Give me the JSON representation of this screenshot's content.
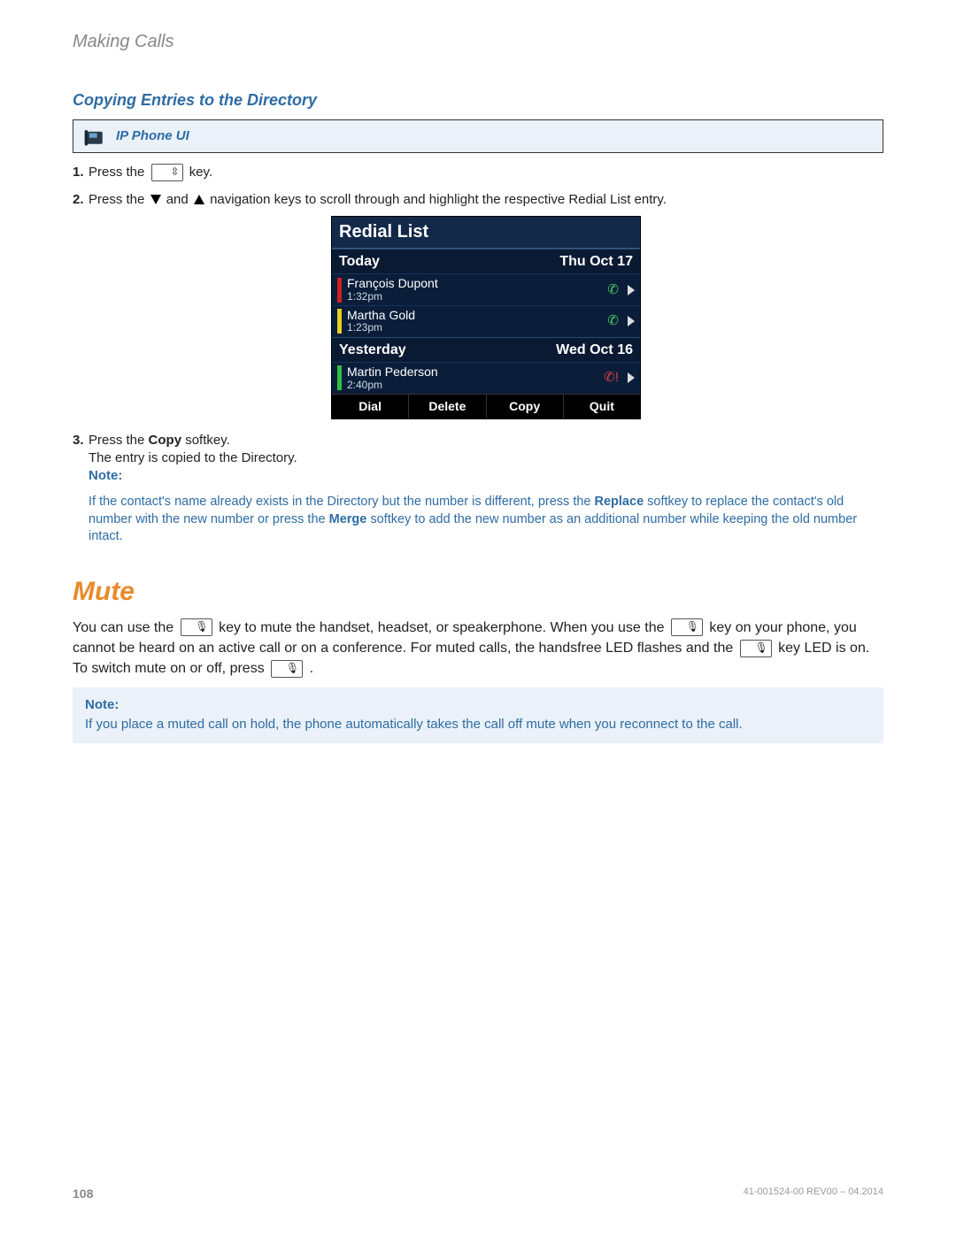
{
  "header": {
    "breadcrumb": "Making Calls"
  },
  "section1": {
    "title": "Copying Entries to the Directory",
    "banner": "IP Phone UI",
    "steps": {
      "s1_pre": "Press the",
      "s1_post": "key.",
      "s2_pre": "Press the",
      "s2_mid": "and",
      "s2_post": "navigation keys to scroll through and highlight the respective Redial List entry.",
      "s3_pre": "Press the ",
      "s3_bold": "Copy",
      "s3_post": " softkey.",
      "s3_line2": "The entry is copied to the Directory."
    },
    "note_label": "Note:",
    "note_text_parts": {
      "a": "If the contact's name already exists in the Directory but the number is different, press the ",
      "b": "Replace",
      "c": " softkey to replace the contact's old number with the new number or press the ",
      "d": "Merge",
      "e": " softkey to add the new number as an additional number while keeping the old number intact."
    }
  },
  "redial": {
    "title": "Redial List",
    "groups": [
      {
        "label": "Today",
        "date": "Thu Oct 17",
        "rows": [
          {
            "bar": "red",
            "name": "François Dupont",
            "time": "1:32pm",
            "icon": "out"
          },
          {
            "bar": "yellow",
            "name": "Martha Gold",
            "time": "1:23pm",
            "icon": "out"
          }
        ]
      },
      {
        "label": "Yesterday",
        "date": "Wed Oct 16",
        "rows": [
          {
            "bar": "green",
            "name": "Martin Pederson",
            "time": "2:40pm",
            "icon": "miss"
          }
        ]
      }
    ],
    "softkeys": [
      "Dial",
      "Delete",
      "Copy",
      "Quit"
    ]
  },
  "section2": {
    "title": "Mute",
    "para_parts": {
      "a": "You can use the ",
      "b": " key to mute the handset, headset, or speakerphone. When you use the ",
      "c": " key on your phone, you cannot be heard on an active call or on a conference. For muted calls, the handsfree LED flashes and the ",
      "d": " key LED is on.  To switch mute on or off, press ",
      "e": " ."
    },
    "note_label": "Note:",
    "note_text": "If you place a muted call on hold, the phone automatically takes the call off mute when you reconnect to the call."
  },
  "footer": {
    "page": "108",
    "doc": "41-001524-00 REV00 – 04.2014"
  },
  "colors": {
    "accent_blue": "#2e6ca4",
    "accent_orange": "#e88a2a",
    "banner_bg": "#eaf1f8",
    "phone_bg": "#0a1e3a"
  }
}
